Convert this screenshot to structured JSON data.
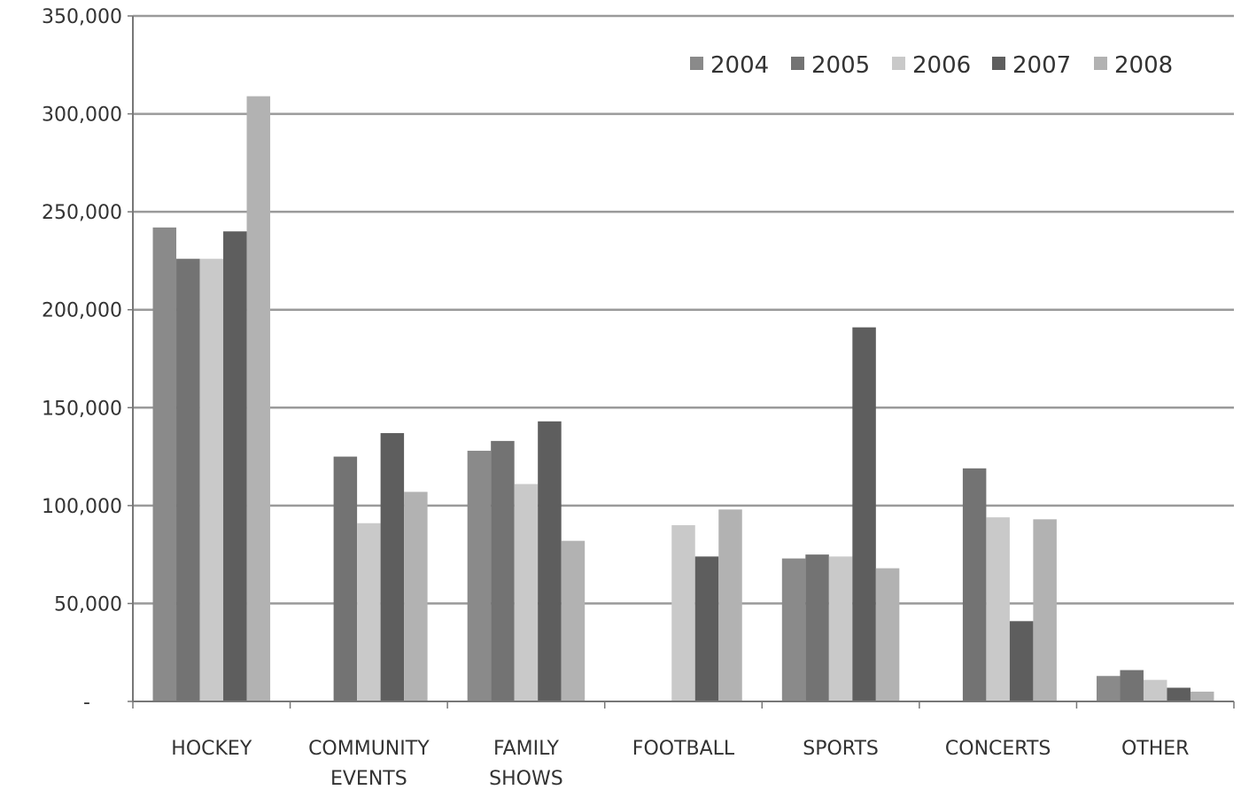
{
  "chart_data": {
    "type": "bar",
    "categories": [
      "HOCKEY",
      "COMMUNITY EVENTS",
      "FAMILY SHOWS",
      "FOOTBALL",
      "SPORTS",
      "CONCERTS",
      "OTHER"
    ],
    "category_lines": [
      [
        "HOCKEY"
      ],
      [
        "COMMUNITY",
        "EVENTS"
      ],
      [
        "FAMILY",
        "SHOWS"
      ],
      [
        "FOOTBALL"
      ],
      [
        "SPORTS"
      ],
      [
        "CONCERTS"
      ],
      [
        "OTHER"
      ]
    ],
    "series": [
      {
        "name": "2004",
        "color": "#8a8a8a",
        "values": [
          242000,
          0,
          128000,
          0,
          73000,
          0,
          13000
        ]
      },
      {
        "name": "2005",
        "color": "#737373",
        "values": [
          226000,
          125000,
          133000,
          0,
          75000,
          119000,
          16000
        ]
      },
      {
        "name": "2006",
        "color": "#c9c9c9",
        "values": [
          226000,
          91000,
          111000,
          90000,
          74000,
          94000,
          11000
        ]
      },
      {
        "name": "2007",
        "color": "#5e5e5e",
        "values": [
          240000,
          137000,
          143000,
          74000,
          191000,
          41000,
          7000
        ]
      },
      {
        "name": "2008",
        "color": "#b2b2b2",
        "values": [
          309000,
          107000,
          82000,
          98000,
          68000,
          93000,
          5000
        ]
      }
    ],
    "ylim": [
      0,
      350000
    ],
    "yticks": [
      0,
      50000,
      100000,
      150000,
      200000,
      250000,
      300000,
      350000
    ],
    "ytick_labels": [
      "-",
      "50,000",
      "100,000",
      "150,000",
      "200,000",
      "250,000",
      "300,000",
      "350,000"
    ],
    "title": "",
    "xlabel": "",
    "ylabel": "",
    "grid": true,
    "legend_position": "top-right"
  }
}
